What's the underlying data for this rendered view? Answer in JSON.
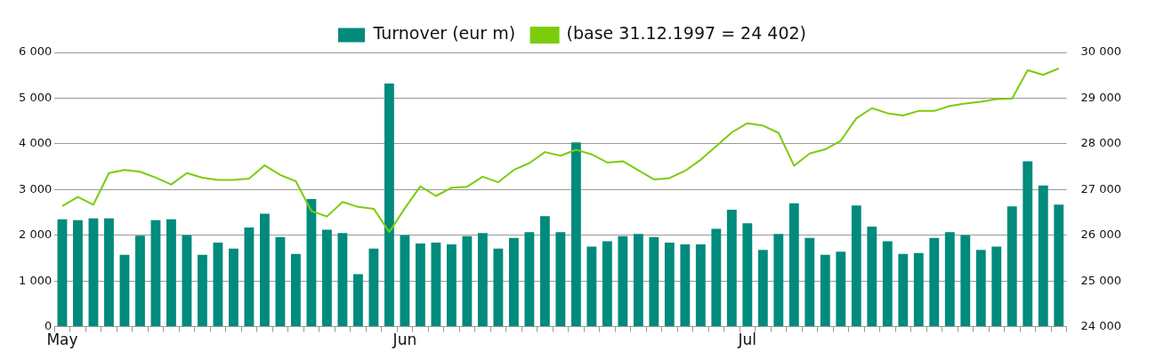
{
  "chart_data": {
    "type": "bar",
    "categories": [
      "May",
      null,
      null,
      null,
      null,
      null,
      null,
      null,
      null,
      null,
      null,
      null,
      null,
      null,
      null,
      null,
      null,
      null,
      null,
      null,
      null,
      null,
      "Jun",
      null,
      null,
      null,
      null,
      null,
      null,
      null,
      null,
      null,
      null,
      null,
      null,
      null,
      null,
      null,
      null,
      null,
      null,
      null,
      null,
      null,
      "Jul",
      null,
      null,
      null,
      null,
      null,
      null,
      null,
      null,
      null,
      null,
      null,
      null,
      null,
      null,
      null,
      null,
      null,
      null,
      null,
      null
    ],
    "series": [
      {
        "name": "Turnover (eur m)",
        "color": "#008b7c",
        "values": [
          2350,
          2330,
          2370,
          2370,
          1570,
          1990,
          2330,
          2350,
          2000,
          1570,
          1840,
          1710,
          2170,
          2470,
          1960,
          1590,
          2790,
          2120,
          2050,
          1150,
          1710,
          5320,
          2000,
          1820,
          1840,
          1800,
          1980,
          2050,
          1710,
          1940,
          2070,
          2420,
          2070,
          4030,
          1750,
          1870,
          1980,
          2030,
          1960,
          1840,
          1800,
          1800,
          2140,
          2560,
          2260,
          1680,
          2030,
          2700,
          1940,
          1570,
          1640,
          2650,
          2190,
          1870,
          1590,
          1610,
          1940,
          2070,
          2000,
          1680,
          1750,
          2630,
          3620,
          3090,
          2670
        ]
      },
      {
        "name": "(base 31.12.1997 = 24 402)",
        "type": "line",
        "axis": "y2",
        "color": "#7ccc0a",
        "values": [
          26640,
          26840,
          26670,
          27360,
          27430,
          27390,
          27260,
          27110,
          27360,
          27260,
          27210,
          27210,
          27240,
          27530,
          27320,
          27180,
          26530,
          26410,
          26730,
          26620,
          26580,
          26070,
          26590,
          27070,
          26860,
          27040,
          27060,
          27280,
          27160,
          27430,
          27580,
          27820,
          27740,
          27870,
          27770,
          27590,
          27620,
          27420,
          27220,
          27250,
          27410,
          27650,
          27950,
          28250,
          28450,
          28400,
          28240,
          27520,
          27790,
          27880,
          28070,
          28560,
          28780,
          28670,
          28620,
          28720,
          28720,
          28830,
          28880,
          28920,
          28980,
          28990,
          29610,
          29510,
          29650
        ]
      }
    ],
    "ylim": [
      0,
      6000
    ],
    "yticks": [
      {
        "value": 0,
        "label": "0"
      },
      {
        "value": 1000,
        "label": "1 000"
      },
      {
        "value": 2000,
        "label": "2 000"
      },
      {
        "value": 3000,
        "label": "3 000"
      },
      {
        "value": 4000,
        "label": "4 000"
      },
      {
        "value": 5000,
        "label": "5 000"
      },
      {
        "value": 6000,
        "label": "6 000"
      }
    ],
    "y2lim": [
      24000,
      30000
    ],
    "y2ticks": [
      {
        "value": 24000,
        "label": "24 000"
      },
      {
        "value": 25000,
        "label": "25 000"
      },
      {
        "value": 26000,
        "label": "26 000"
      },
      {
        "value": 27000,
        "label": "27 000"
      },
      {
        "value": 28000,
        "label": "28 000"
      },
      {
        "value": 29000,
        "label": "29 000"
      },
      {
        "value": 30000,
        "label": "30 000"
      }
    ],
    "grid": "y",
    "legend": "top",
    "marker": "none",
    "line_style": "solid"
  }
}
